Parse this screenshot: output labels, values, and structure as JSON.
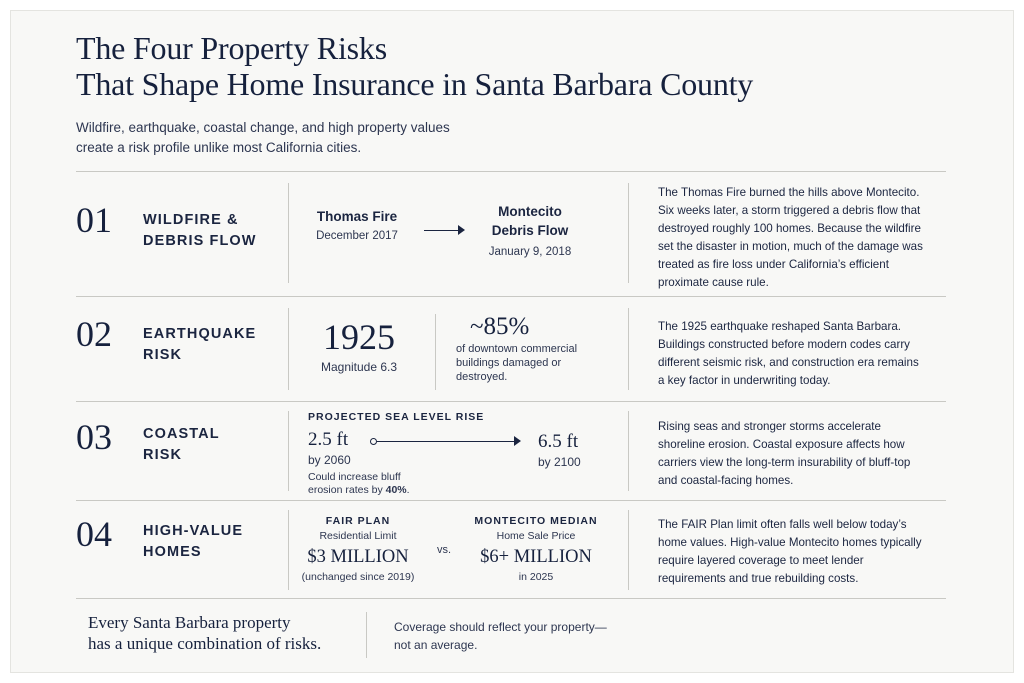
{
  "header": {
    "title_line1": "The Four Property Risks",
    "title_line2": "That Shape Home Insurance in Santa Barbara County",
    "subtitle_line1": "Wildfire, earthquake, coastal change, and high property values",
    "subtitle_line2": "create a risk profile unlike most California cities."
  },
  "rows": [
    {
      "number": "01",
      "category_line1": "WILDFIRE &",
      "category_line2": "DEBRIS FLOW",
      "from_title": "Thomas Fire",
      "from_date": "December 2017",
      "to_title_line1": "Montecito",
      "to_title_line2": "Debris Flow",
      "to_date": "January 9, 2018",
      "description": [
        "The Thomas Fire burned the hills above Montecito.",
        "Six weeks later, a storm triggered a debris flow that",
        "destroyed roughly 100 homes. Because the wildfire",
        "set the disaster in motion, much of the damage was",
        "treated as fire loss under California’s efficient",
        "proximate cause rule."
      ]
    },
    {
      "number": "02",
      "category_line1": "EARTHQUAKE",
      "category_line2": "RISK",
      "year": "1925",
      "magnitude": "Magnitude 6.3",
      "percent": "~85%",
      "percent_line1": "of downtown commercial",
      "percent_line2": "buildings damaged or",
      "percent_line3": "destroyed.",
      "description": [
        "The 1925 earthquake reshaped Santa Barbara.",
        "Buildings constructed before modern codes carry",
        "different seismic risk, and construction era remains",
        "a key factor in underwriting today."
      ]
    },
    {
      "number": "03",
      "category_line1": "COASTAL",
      "category_line2": "RISK",
      "heading": "PROJECTED SEA LEVEL RISE",
      "from_value": "2.5 ft",
      "from_year": "by 2060",
      "to_value": "6.5 ft",
      "to_year": "by 2100",
      "note_line1": "Could increase bluff",
      "note_line2_prefix": "erosion rates by ",
      "note_line2_bold": "40%",
      "note_line2_suffix": ".",
      "description": [
        "Rising seas and stronger storms accelerate",
        "shoreline erosion. Coastal exposure affects how",
        "carriers view the long-term insurability of bluff-top",
        "and coastal-facing homes."
      ]
    },
    {
      "number": "04",
      "category_line1": "HIGH-VALUE",
      "category_line2": "HOMES",
      "left_heading": "FAIR PLAN",
      "left_sub": "Residential Limit",
      "left_value": "$3 MILLION",
      "left_note": "(unchanged since 2019)",
      "vs": "vs.",
      "right_heading": "MONTECITO MEDIAN",
      "right_sub": "Home Sale Price",
      "right_value": "$6+ MILLION",
      "right_note": "in 2025",
      "description": [
        "The FAIR Plan limit often falls well below today’s",
        "home values. High-value Montecito homes typically",
        "require layered coverage to meet lender",
        "requirements and true rebuilding costs."
      ]
    }
  ],
  "footer": {
    "left_line1": "Every Santa Barbara property",
    "left_line2": "has a unique combination of risks.",
    "right_line1": "Coverage should reflect your property—",
    "right_line2": "not an average."
  }
}
